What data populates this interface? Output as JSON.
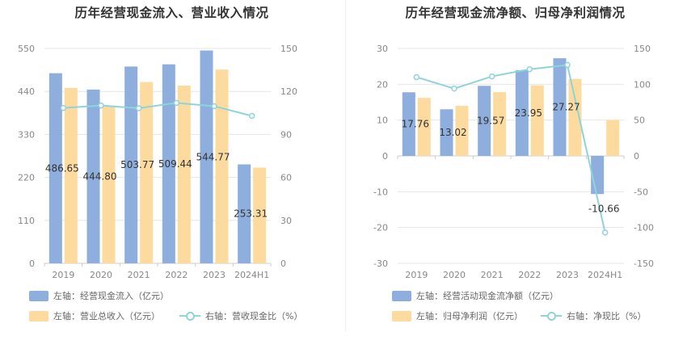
{
  "colors": {
    "blue": "#8eaedd",
    "orange": "#fddb9f",
    "line": "#8fd3dc",
    "grid": "#e6e6e6"
  },
  "chart_data": [
    {
      "type": "bar",
      "title": "历年经营现金流入、营业收入情况",
      "categories": [
        "2019",
        "2020",
        "2021",
        "2022",
        "2023",
        "2024H1"
      ],
      "y_left": {
        "ylim": [
          0,
          550
        ],
        "ticks": [
          "0",
          "110",
          "220",
          "330",
          "440",
          "550"
        ]
      },
      "y_right": {
        "ylim": [
          0,
          150
        ],
        "ticks": [
          "0",
          "30",
          "60",
          "90",
          "120",
          "150"
        ]
      },
      "series": [
        {
          "name": "左轴：经营现金流入（亿元）",
          "axis": "left",
          "kind": "bar",
          "color": "#8eaedd",
          "values": [
            486.65,
            444.8,
            503.77,
            509.44,
            544.77,
            253.31
          ],
          "labels": [
            "486.65",
            "444.80",
            "503.77",
            "509.44",
            "544.77",
            "253.31"
          ]
        },
        {
          "name": "左轴：营业总收入（亿元）",
          "axis": "left",
          "kind": "bar",
          "color": "#fddb9f",
          "values": [
            449,
            403,
            464,
            455,
            496,
            245
          ]
        },
        {
          "name": "右轴：营收现金比（%）",
          "axis": "right",
          "kind": "line",
          "color": "#8fd3dc",
          "values": [
            108.5,
            110.2,
            108.3,
            112.0,
            109.7,
            102.9
          ]
        }
      ],
      "legend": "bottom"
    },
    {
      "type": "bar",
      "title": "历年经营现金流净额、归母净利润情况",
      "categories": [
        "2019",
        "2020",
        "2021",
        "2022",
        "2023",
        "2024H1"
      ],
      "y_left": {
        "ylim": [
          -30,
          30
        ],
        "ticks": [
          "-30",
          "-20",
          "-10",
          "0",
          "10",
          "20",
          "30"
        ]
      },
      "y_right": {
        "ylim": [
          -150,
          150
        ],
        "ticks": [
          "-150",
          "-100",
          "-50",
          "0",
          "50",
          "100",
          "150"
        ]
      },
      "series": [
        {
          "name": "左轴：经营活动现金流净额（亿元）",
          "axis": "left",
          "kind": "bar",
          "color": "#8eaedd",
          "values": [
            17.76,
            13.02,
            19.57,
            23.95,
            27.27,
            -10.66
          ],
          "labels": [
            "17.76",
            "13.02",
            "19.57",
            "23.95",
            "27.27",
            "-10.66"
          ]
        },
        {
          "name": "左轴：归母净利润（亿元）",
          "axis": "left",
          "kind": "bar",
          "color": "#fddb9f",
          "values": [
            16.2,
            14.0,
            17.8,
            19.7,
            21.5,
            10.0
          ]
        },
        {
          "name": "右轴：净现比（%）",
          "axis": "right",
          "kind": "line",
          "color": "#8fd3dc",
          "values": [
            110,
            94,
            111,
            121,
            127,
            -107
          ]
        }
      ],
      "legend": "bottom"
    }
  ]
}
